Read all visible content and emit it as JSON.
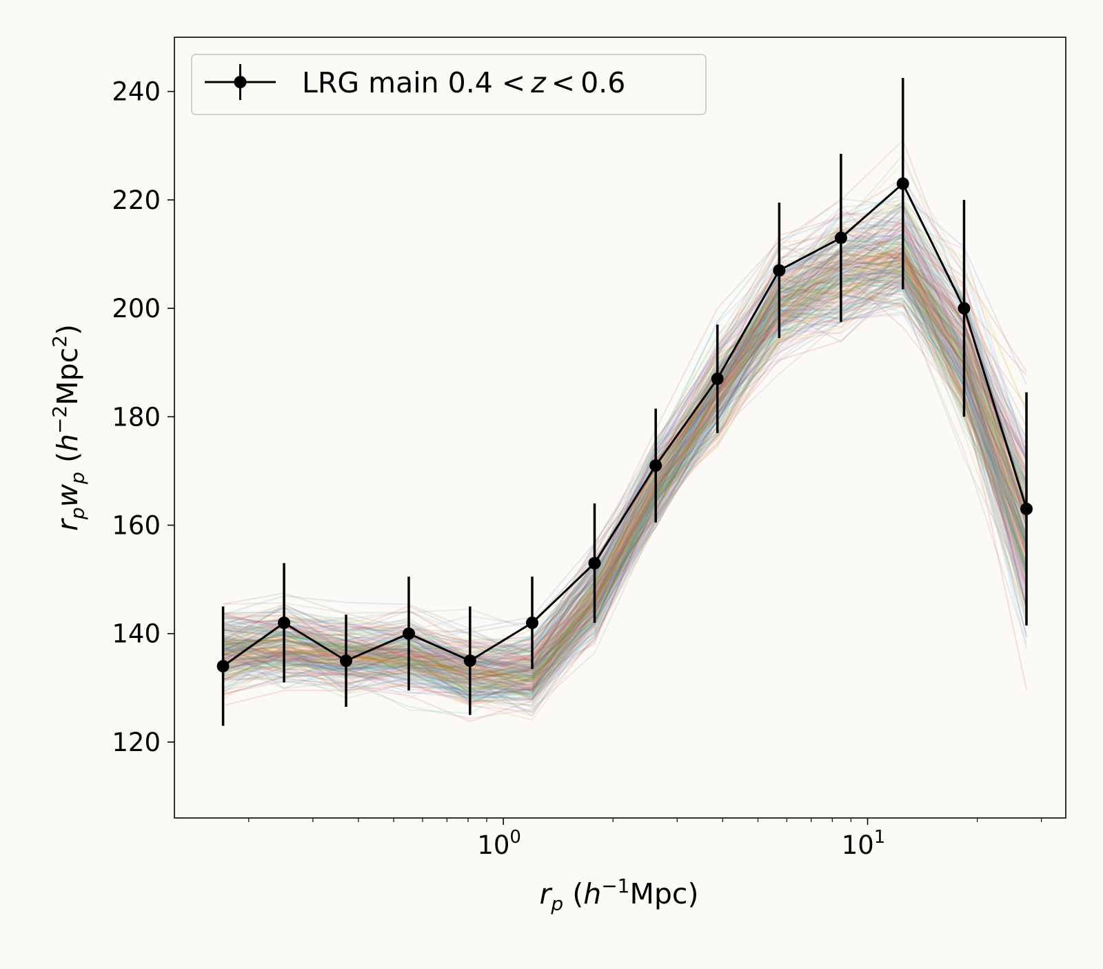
{
  "chart_data": {
    "type": "line",
    "xscale": "log",
    "x": [
      0.17,
      0.25,
      0.37,
      0.55,
      0.81,
      1.2,
      1.78,
      2.62,
      3.87,
      5.72,
      8.45,
      12.5,
      18.4,
      27.3
    ],
    "series": [
      {
        "name": "LRG main 0.4 < z < 0.6",
        "y": [
          134,
          142,
          135,
          140,
          135,
          142,
          153,
          171,
          187,
          207,
          213,
          223,
          200,
          163
        ],
        "yerr": [
          11,
          11,
          8.5,
          10.5,
          10,
          8.5,
          11,
          10.5,
          10,
          12.5,
          15.5,
          19.5,
          20,
          21.5
        ],
        "color": "#000000"
      }
    ],
    "background_ensemble": {
      "description_visible": "many faint multicolored realization lines",
      "center": [
        137,
        138,
        136,
        136,
        133,
        133,
        147,
        167,
        185,
        201,
        207,
        210,
        192,
        160
      ],
      "spread": [
        5.5,
        5.5,
        5,
        5,
        5,
        5.5,
        6,
        6,
        6.5,
        7,
        8,
        8.5,
        10,
        14
      ],
      "opacity": 0.12
    },
    "xlabel": "r_p (h^{-1}Mpc)",
    "ylabel": "r_p w_p (h^{-2}Mpc^{2})",
    "xlim": [
      0.125,
      35
    ],
    "ylim": [
      106,
      250
    ],
    "yticks": [
      120,
      140,
      160,
      180,
      200,
      220,
      240
    ],
    "xticks_major": [
      1,
      10
    ],
    "xtick_labels": [
      "10",
      "10"
    ],
    "xtick_exponents": [
      "0",
      "1"
    ],
    "legend_position": "upper-left",
    "grid": false
  },
  "labels": {
    "legend_text_main": "LRG main 0.4 ",
    "legend_lt1": "<",
    "legend_z": "z",
    "legend_lt2": "<",
    "legend_val": "0.6",
    "x_r": "r",
    "x_sub": "p",
    "x_open": " (",
    "x_h": "h",
    "x_exp": "−1",
    "x_rest": "Mpc)",
    "y_r": "r",
    "y_sub1": "p",
    "y_w": "w",
    "y_sub2": "p",
    "y_open": " (",
    "y_h": "h",
    "y_exp1": "−2",
    "y_mpc": "Mpc",
    "y_exp2": "2",
    "y_close": ")"
  },
  "colors": {
    "background": "#fbfaf6",
    "palette": [
      "#1f77b4",
      "#ff7f0e",
      "#2ca02c",
      "#d62728",
      "#9467bd",
      "#8c564b",
      "#e377c2",
      "#7f7f7f",
      "#bcbd22",
      "#17becf"
    ]
  }
}
